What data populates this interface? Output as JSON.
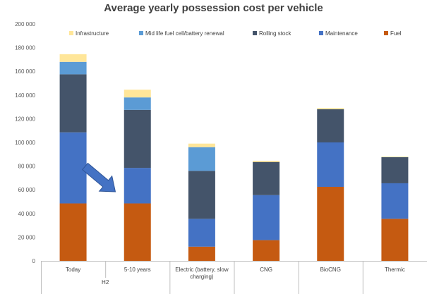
{
  "chart_data": {
    "type": "bar",
    "stacked": true,
    "title": "Average yearly possession cost per vehicle",
    "xlabel": "",
    "ylabel": "",
    "ylim": [
      0,
      200000
    ],
    "yticks": [
      0,
      20000,
      40000,
      60000,
      80000,
      100000,
      120000,
      140000,
      160000,
      180000,
      200000
    ],
    "ytick_labels": [
      "0",
      "20 000",
      "40 000",
      "60 000",
      "80 000",
      "100 000",
      "120 000",
      "140 000",
      "160 000",
      "180 000",
      "200 000"
    ],
    "grid": false,
    "legend_position": "top",
    "categories": [
      "Today",
      "5-10 years",
      "Electric (battery, slow charging)",
      "CNG",
      "BioCNG",
      "Thermic"
    ],
    "category_display": [
      [
        "Today"
      ],
      [
        "5-10 years"
      ],
      [
        "Electric (battery, slow",
        "charging)"
      ],
      [
        "CNG"
      ],
      [
        "BioCNG"
      ],
      [
        "Thermic"
      ]
    ],
    "groups": [
      {
        "label": "H2",
        "span": [
          0,
          1
        ]
      }
    ],
    "series": [
      {
        "name": "Fuel",
        "color": "#C55A11",
        "values": [
          48500,
          48500,
          12000,
          17500,
          62500,
          35500
        ]
      },
      {
        "name": "Maintenance",
        "color": "#4472C4",
        "values": [
          60000,
          30000,
          23500,
          38000,
          37500,
          30000
        ]
      },
      {
        "name": "Rolling stock",
        "color": "#44546A",
        "values": [
          49000,
          49000,
          40500,
          28000,
          28000,
          22000
        ]
      },
      {
        "name": "Mid life fuel cell/battery renewal",
        "color": "#5B9BD5",
        "values": [
          10500,
          10500,
          20000,
          0,
          0,
          0
        ]
      },
      {
        "name": "Infrastructure",
        "color": "#FFE699",
        "values": [
          6500,
          6500,
          3000,
          1000,
          1000,
          500
        ]
      }
    ],
    "legend_order": [
      "Infrastructure",
      "Mid life fuel cell/battery renewal",
      "Rolling stock",
      "Maintenance",
      "Fuel"
    ],
    "annotations": [
      {
        "type": "arrow",
        "shape": "block-arrow",
        "from_category": "Today",
        "to_category": "5-10 years",
        "color": "#4472C4"
      }
    ]
  }
}
